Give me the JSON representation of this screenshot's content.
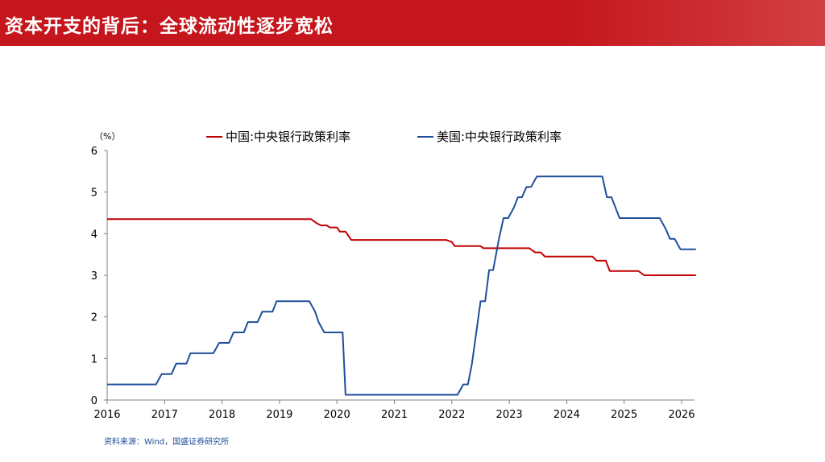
{
  "header": {
    "title": "资本开支的背后：全球流动性逐步宽松",
    "brand_color": "#c4161c"
  },
  "source": "资料来源：Wind，国盛证券研究所",
  "chart_data": {
    "type": "line",
    "y_unit": "（%）",
    "ylim": [
      0,
      6
    ],
    "y_ticks": [
      "0",
      "1",
      "2",
      "3",
      "4",
      "5",
      "6"
    ],
    "xlim": [
      2016.0,
      2026.25
    ],
    "x_ticks": [
      "2016",
      "2017",
      "2018",
      "2019",
      "2020",
      "2021",
      "2022",
      "2023",
      "2024",
      "2025",
      "2026"
    ],
    "grid": false,
    "legend_position": "top",
    "series": [
      {
        "name": "中国:中央银行政策利率",
        "color": "#c00000",
        "points": [
          [
            2016.0,
            4.35
          ],
          [
            2019.55,
            4.35
          ],
          [
            2019.65,
            4.25
          ],
          [
            2019.72,
            4.2
          ],
          [
            2019.82,
            4.2
          ],
          [
            2019.88,
            4.15
          ],
          [
            2020.0,
            4.15
          ],
          [
            2020.05,
            4.05
          ],
          [
            2020.15,
            4.05
          ],
          [
            2020.25,
            3.85
          ],
          [
            2021.9,
            3.85
          ],
          [
            2022.0,
            3.8
          ],
          [
            2022.05,
            3.7
          ],
          [
            2022.5,
            3.7
          ],
          [
            2022.55,
            3.65
          ],
          [
            2023.35,
            3.65
          ],
          [
            2023.45,
            3.55
          ],
          [
            2023.55,
            3.55
          ],
          [
            2023.62,
            3.45
          ],
          [
            2024.45,
            3.45
          ],
          [
            2024.52,
            3.35
          ],
          [
            2024.68,
            3.35
          ],
          [
            2024.75,
            3.1
          ],
          [
            2025.25,
            3.1
          ],
          [
            2025.35,
            3.0
          ],
          [
            2026.25,
            3.0
          ]
        ]
      },
      {
        "name": "美国:中央银行政策利率",
        "color": "#1f4e9a",
        "points": [
          [
            2016.0,
            0.375
          ],
          [
            2016.85,
            0.375
          ],
          [
            2016.95,
            0.625
          ],
          [
            2017.12,
            0.625
          ],
          [
            2017.2,
            0.875
          ],
          [
            2017.38,
            0.875
          ],
          [
            2017.45,
            1.125
          ],
          [
            2017.85,
            1.125
          ],
          [
            2017.95,
            1.375
          ],
          [
            2018.12,
            1.375
          ],
          [
            2018.2,
            1.625
          ],
          [
            2018.38,
            1.625
          ],
          [
            2018.45,
            1.875
          ],
          [
            2018.62,
            1.875
          ],
          [
            2018.7,
            2.125
          ],
          [
            2018.88,
            2.125
          ],
          [
            2018.95,
            2.375
          ],
          [
            2019.52,
            2.375
          ],
          [
            2019.62,
            2.125
          ],
          [
            2019.68,
            1.875
          ],
          [
            2019.78,
            1.625
          ],
          [
            2020.1,
            1.625
          ],
          [
            2020.15,
            0.125
          ],
          [
            2022.1,
            0.125
          ],
          [
            2022.2,
            0.375
          ],
          [
            2022.28,
            0.375
          ],
          [
            2022.35,
            0.875
          ],
          [
            2022.5,
            2.375
          ],
          [
            2022.58,
            2.375
          ],
          [
            2022.65,
            3.125
          ],
          [
            2022.72,
            3.125
          ],
          [
            2022.82,
            3.875
          ],
          [
            2022.9,
            4.375
          ],
          [
            2022.98,
            4.375
          ],
          [
            2023.08,
            4.625
          ],
          [
            2023.15,
            4.875
          ],
          [
            2023.22,
            4.875
          ],
          [
            2023.3,
            5.125
          ],
          [
            2023.38,
            5.125
          ],
          [
            2023.48,
            5.375
          ],
          [
            2024.62,
            5.375
          ],
          [
            2024.7,
            4.875
          ],
          [
            2024.78,
            4.875
          ],
          [
            2024.92,
            4.375
          ],
          [
            2025.62,
            4.375
          ],
          [
            2025.72,
            4.125
          ],
          [
            2025.8,
            3.875
          ],
          [
            2025.88,
            3.875
          ],
          [
            2025.98,
            3.625
          ],
          [
            2026.25,
            3.625
          ]
        ]
      }
    ]
  }
}
